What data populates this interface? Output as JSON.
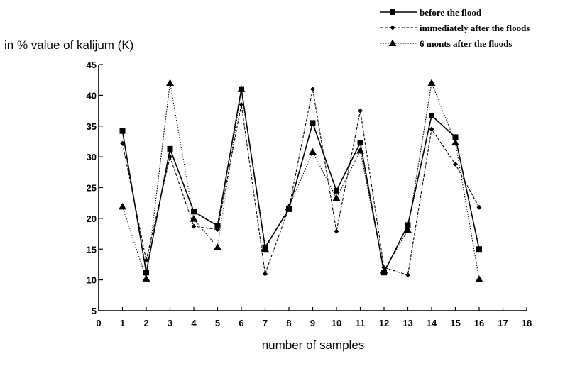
{
  "chart_data": {
    "type": "line",
    "ylabel": "in % value of kalijum (K)",
    "xlabel": "number of samples",
    "xlim": [
      0,
      18
    ],
    "ylim": [
      5,
      45
    ],
    "xticks": [
      "0",
      "1",
      "2",
      "3",
      "4",
      "5",
      "6",
      "7",
      "8",
      "9",
      "10",
      "11",
      "12",
      "13",
      "14",
      "15",
      "16",
      "17",
      "18"
    ],
    "yticks": [
      "5",
      "10",
      "15",
      "20",
      "25",
      "30",
      "35",
      "40",
      "45"
    ],
    "grid": false,
    "legend_position": "top-right",
    "x": [
      1,
      2,
      3,
      4,
      5,
      6,
      7,
      8,
      9,
      10,
      11,
      12,
      13,
      14,
      15,
      16
    ],
    "series": [
      {
        "name": "before the flood",
        "marker": "square",
        "dash": "solid",
        "values": [
          34.2,
          11.2,
          31.3,
          21.1,
          18.8,
          41.0,
          15.3,
          21.5,
          35.5,
          24.5,
          32.3,
          11.2,
          18.9,
          36.7,
          33.2,
          15.0
        ]
      },
      {
        "name": "immediately after the floods",
        "marker": "diamond",
        "dash": "dashed",
        "values": [
          32.2,
          13.2,
          30.0,
          18.7,
          18.2,
          38.5,
          11.0,
          21.7,
          41.0,
          17.9,
          37.5,
          12.0,
          10.8,
          34.5,
          28.8,
          21.8
        ]
      },
      {
        "name": "6 monts after the floods",
        "marker": "triangle",
        "dash": "dotted",
        "values": [
          21.9,
          10.2,
          42.0,
          19.9,
          15.3,
          41.0,
          15.0,
          21.8,
          30.8,
          23.3,
          31.0,
          11.5,
          18.1,
          42.0,
          32.3,
          10.1
        ]
      }
    ]
  }
}
